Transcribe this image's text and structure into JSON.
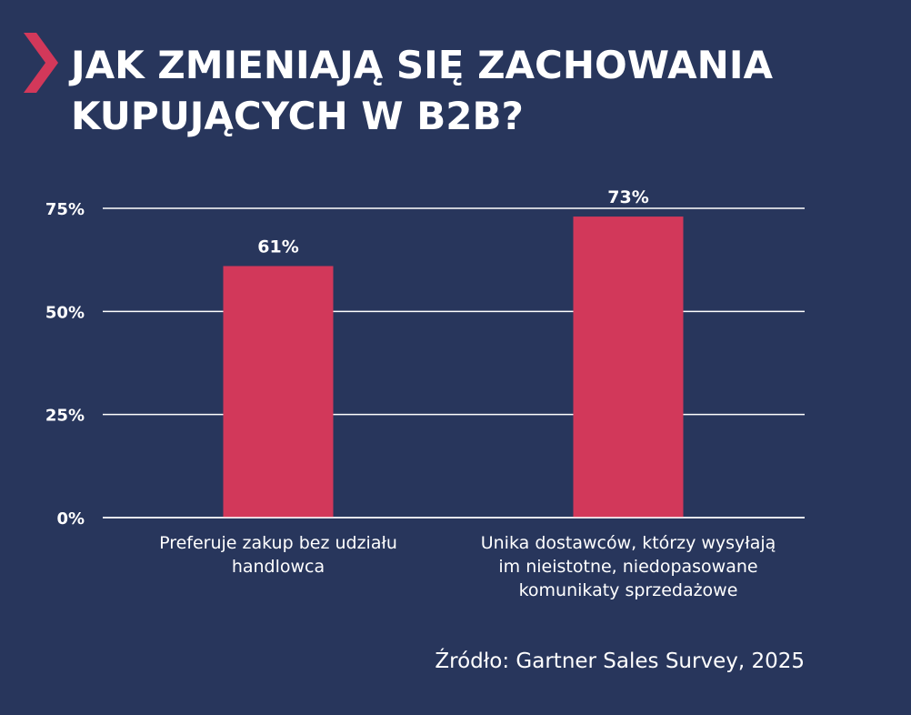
{
  "colors": {
    "background": "#28365c",
    "accent": "#d2385a",
    "text": "#ffffff",
    "grid": "#ffffff"
  },
  "header": {
    "icon": "chevron-right-icon",
    "title_line1": "JAK ZMIENIAJĄ SIĘ ZACHOWANIA",
    "title_line2": "KUPUJĄCYCH W B2B?"
  },
  "chart_data": {
    "type": "bar",
    "title": "JAK ZMIENIAJĄ SIĘ ZACHOWANIA KUPUJĄCYCH W B2B?",
    "xlabel": "",
    "ylabel": "",
    "ylim": [
      0,
      75
    ],
    "yticks": [
      0,
      25,
      50,
      75
    ],
    "ytick_labels": [
      "0%",
      "25%",
      "50%",
      "75%"
    ],
    "grid": true,
    "categories": [
      "Preferuje zakup bez udziału handlowca",
      "Unika dostawców, którzy wysyłają im nieistotne, niedopasowane komunikaty sprzedażowe"
    ],
    "category_lines": [
      [
        "Preferuje zakup bez udziału",
        "handlowca"
      ],
      [
        "Unika dostawców, którzy wysyłają",
        "im nieistotne, niedopasowane",
        "komunikaty sprzedażowe"
      ]
    ],
    "values": [
      61,
      73
    ],
    "data_labels": [
      "61%",
      "73%"
    ],
    "bar_color": "#d2385a"
  },
  "footer": {
    "source": "Źródło: Gartner Sales Survey, 2025"
  }
}
